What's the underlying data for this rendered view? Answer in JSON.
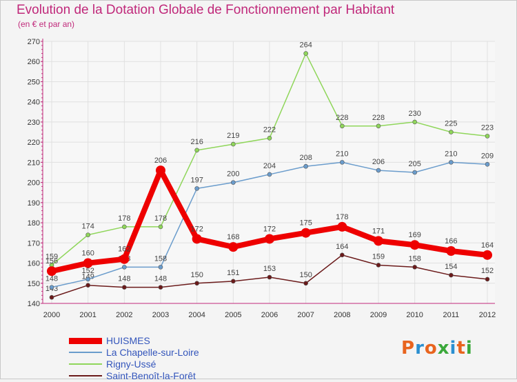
{
  "title": "Evolution de la Dotation Globale de Fonctionnement par Habitant",
  "subtitle": "(en € et par an)",
  "logo": {
    "text": "Proxiti",
    "colors": [
      "#e8641e",
      "#2a8fd0",
      "#e8641e",
      "#3aa83a",
      "#2a8fd0",
      "#e8641e",
      "#3aa83a"
    ]
  },
  "chart_data": {
    "type": "line",
    "x": [
      "2000",
      "2001",
      "2002",
      "2003",
      "2004",
      "2005",
      "2006",
      "2007",
      "2008",
      "2009",
      "2010",
      "2011",
      "2012"
    ],
    "ylim": [
      140,
      270
    ],
    "yticks": [
      140,
      150,
      160,
      170,
      180,
      190,
      200,
      210,
      220,
      230,
      240,
      250,
      260,
      270
    ],
    "grid": true,
    "legend_position": "bottom-left",
    "series": [
      {
        "name": "Saint-Benoît-la-Forêt",
        "color": "#6b1a1a",
        "weight": "thin",
        "values": [
          143,
          149,
          148,
          148,
          150,
          151,
          153,
          150,
          164,
          159,
          158,
          154,
          152
        ]
      },
      {
        "name": "Rigny-Ussé",
        "color": "#8fd65a",
        "weight": "thin",
        "values": [
          159,
          174,
          178,
          178,
          216,
          219,
          222,
          264,
          228,
          228,
          230,
          225,
          223
        ]
      },
      {
        "name": "La Chapelle-sur-Loire",
        "color": "#6a9ccc",
        "weight": "thin",
        "values": [
          148,
          152,
          158,
          158,
          197,
          200,
          204,
          208,
          210,
          206,
          205,
          210,
          209
        ]
      },
      {
        "name": "HUISMES",
        "color": "#ee0000",
        "weight": "thick",
        "values": [
          156,
          160,
          162,
          206,
          172,
          168,
          172,
          175,
          178,
          171,
          169,
          166,
          164
        ]
      }
    ],
    "legend_order": [
      "HUISMES",
      "La Chapelle-sur-Loire",
      "Rigny-Ussé",
      "Saint-Benoît-la-Forêt"
    ]
  }
}
